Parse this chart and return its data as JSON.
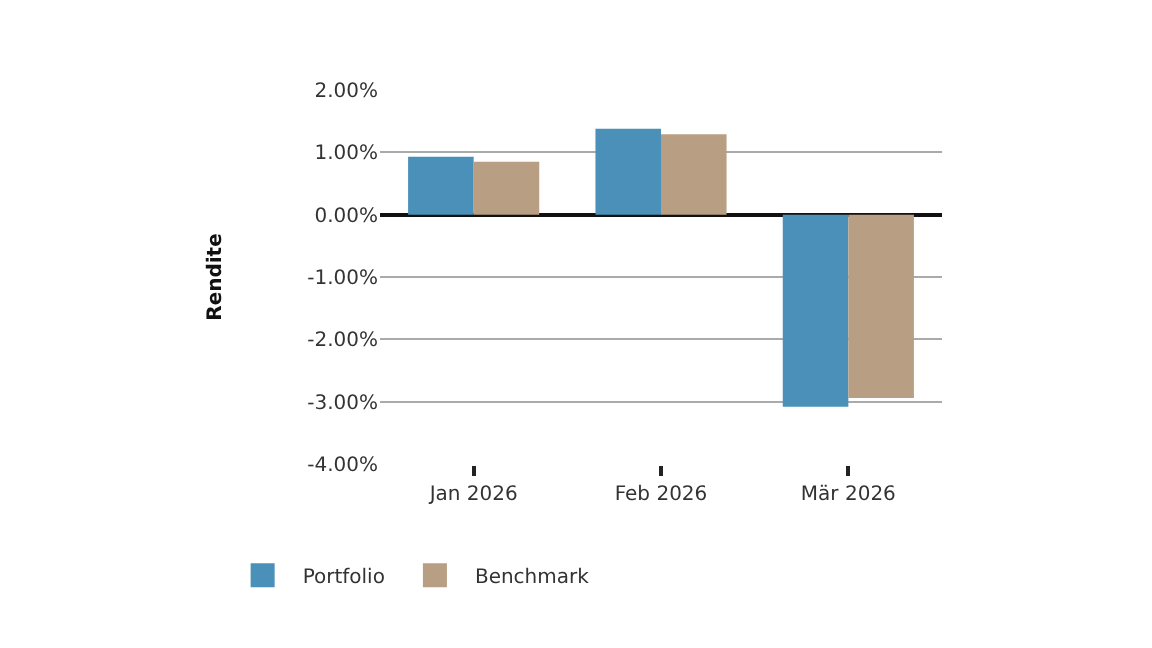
{
  "chart_data": {
    "type": "bar",
    "ylabel": "Rendite",
    "categories": [
      "Jan 2026",
      "Feb 2026",
      "Mär 2026"
    ],
    "series": [
      {
        "name": "Portfolio",
        "color": "#4a90b8",
        "values": [
          0.93,
          1.38,
          -3.08
        ]
      },
      {
        "name": "Benchmark",
        "color": "#b89e82",
        "values": [
          0.85,
          1.29,
          -2.94
        ]
      }
    ],
    "ylim": [
      -4,
      2
    ],
    "yticks": [
      {
        "value": 2,
        "label": "2.00%"
      },
      {
        "value": 1,
        "label": "1.00%"
      },
      {
        "value": 0,
        "label": "0.00%"
      },
      {
        "value": -1,
        "label": "-1.00%"
      },
      {
        "value": -2,
        "label": "-2.00%"
      },
      {
        "value": -3,
        "label": "-3.00%"
      },
      {
        "value": -4,
        "label": "-4.00%"
      }
    ],
    "grid": "y",
    "legend": "bottom left"
  }
}
